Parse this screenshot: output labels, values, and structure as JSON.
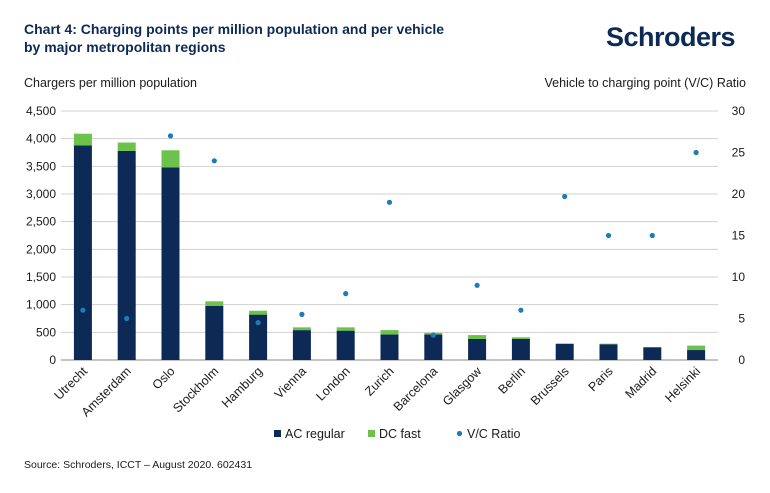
{
  "header": {
    "title": "Chart 4: Charging points per million population and per vehicle by major metropolitan regions",
    "brand": "Schroders"
  },
  "footer": {
    "source": "Source: Schroders, ICCT – August 2020. 602431"
  },
  "colors": {
    "ac": "#0c2a55",
    "dc": "#6cc24a",
    "vc": "#1f7ab8",
    "grid": "#d0d0d0",
    "title": "#0c2a55"
  },
  "chart_data": {
    "type": "bar",
    "stacked": true,
    "categories": [
      "Utrecht",
      "Amsterdam",
      "Oslo",
      "Stockholm",
      "Hamburg",
      "Vienna",
      "London",
      "Zurich",
      "Barcelona",
      "Glasgow",
      "Berlin",
      "Brussels",
      "Paris",
      "Madrid",
      "Helsinki"
    ],
    "series": [
      {
        "name": "AC regular",
        "kind": "bar",
        "axis": "left",
        "values": [
          3880,
          3780,
          3480,
          980,
          820,
          540,
          530,
          460,
          460,
          380,
          380,
          290,
          285,
          230,
          180
        ]
      },
      {
        "name": "DC fast",
        "kind": "bar",
        "axis": "left",
        "values": [
          210,
          150,
          310,
          80,
          70,
          50,
          60,
          80,
          30,
          70,
          30,
          10,
          10,
          5,
          80
        ]
      },
      {
        "name": "V/C Ratio",
        "kind": "scatter",
        "axis": "right",
        "values": [
          6,
          5,
          27,
          24,
          4.5,
          5.5,
          8,
          19,
          3,
          9,
          6,
          19.7,
          15,
          15,
          25
        ]
      }
    ],
    "ylabel": "Chargers per million population",
    "y2label": "Vehicle to charging point (V/C) Ratio",
    "ylim": [
      0,
      4500
    ],
    "yticks": [
      "0",
      "500",
      "1,000",
      "1,500",
      "2,000",
      "2,500",
      "3,000",
      "3,500",
      "4,000",
      "4,500"
    ],
    "y2lim": [
      0,
      30
    ],
    "y2ticks": [
      "0",
      "5",
      "10",
      "15",
      "20",
      "25",
      "30"
    ],
    "grid": true,
    "legend_position": "bottom"
  }
}
